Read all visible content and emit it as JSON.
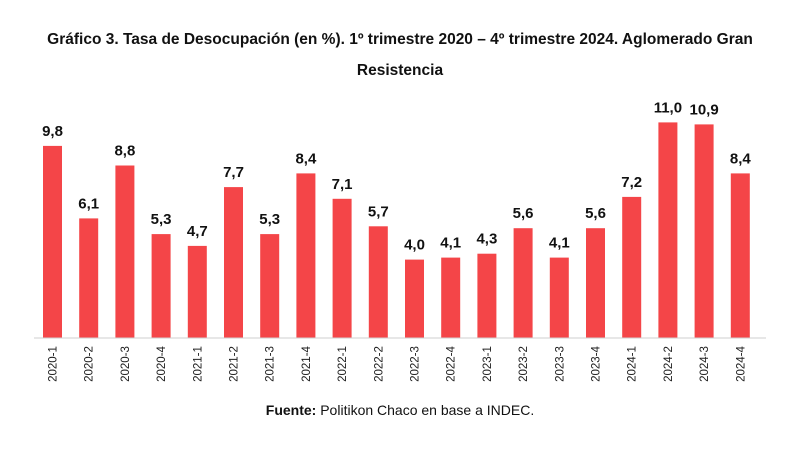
{
  "chart_data": {
    "type": "bar",
    "title": "Gráfico 3. Tasa de Desocupación (en %). 1º trimestre 2020 – 4º trimestre 2024. Aglomerado Gran Resistencia",
    "categories": [
      "2020-1",
      "2020-2",
      "2020-3",
      "2020-4",
      "2021-1",
      "2021-2",
      "2021-3",
      "2021-4",
      "2022-1",
      "2022-2",
      "2022-3",
      "2022-4",
      "2023-1",
      "2023-2",
      "2023-3",
      "2023-4",
      "2024-1",
      "2024-2",
      "2024-3",
      "2024-4"
    ],
    "values": [
      9.8,
      6.1,
      8.8,
      5.3,
      4.7,
      7.7,
      5.3,
      8.4,
      7.1,
      5.7,
      4.0,
      4.1,
      4.3,
      5.6,
      4.1,
      5.6,
      7.2,
      11.0,
      10.9,
      8.4
    ],
    "value_labels": [
      "9,8",
      "6,1",
      "8,8",
      "5,3",
      "4,7",
      "7,7",
      "5,3",
      "8,4",
      "7,1",
      "5,7",
      "4,0",
      "4,1",
      "4,3",
      "5,6",
      "4,1",
      "5,6",
      "7,2",
      "11,0",
      "10,9",
      "8,4"
    ],
    "xlabel": "",
    "ylabel": "",
    "ylim": [
      0,
      11
    ],
    "grid": false,
    "bar_color": "#f44548"
  },
  "source": {
    "label": "Fuente:",
    "text": " Politikon Chaco en base a INDEC."
  }
}
